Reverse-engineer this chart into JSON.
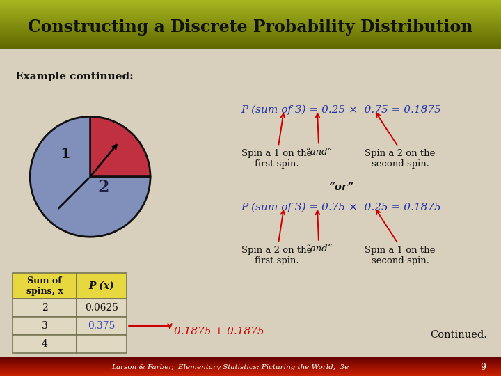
{
  "title": "Constructing a Discrete Probability Distribution",
  "title_bg_top": "#a8b820",
  "title_bg_bot": "#606800",
  "title_color": "#111111",
  "bg_color": "#d8d0bc",
  "footer_text": "Larson & Farber,  Elementary Statistics: Picturing the World,  3e",
  "footer_page": "9",
  "footer_bg_top": "#cc2200",
  "footer_bg_bot": "#660000",
  "header_border_color": "#22224a",
  "example_label": "Example continued:",
  "pie_colors": [
    "#c03040",
    "#8090bb"
  ],
  "pie_sizes": [
    25,
    75
  ],
  "table_headers": [
    "Sum of\nspins, x",
    "P (x)"
  ],
  "table_rows": [
    [
      "2",
      "0.0625"
    ],
    [
      "3",
      "0.375"
    ],
    [
      "4",
      ""
    ]
  ],
  "table_header_bg": "#e8d840",
  "table_row_bg": "#e0d8c0",
  "eq1": "P (sum of 3) = 0.25 ×  0.75 = 0.1875",
  "eq2": "P (sum of 3) = 0.75 ×  0.25 = 0.1875",
  "label_spin1a": "Spin a 1 on the\nfirst spin.",
  "label_and1": "“and”",
  "label_spin2a": "Spin a 2 on the\nsecond spin.",
  "label_or": "“or”",
  "label_spin2b": "Spin a 2 on the\nfirst spin.",
  "label_and2": "“and”",
  "label_spin1b": "Spin a 1 on the\nsecond spin.",
  "label_sum": "0.1875 + 0.1875",
  "label_continued": "Continued.",
  "arrow_color": "#cc0000",
  "text_color_red": "#cc0000",
  "text_color_dark": "#111111",
  "text_color_blue": "#2233aa",
  "table_highlight_color": "#3344cc"
}
